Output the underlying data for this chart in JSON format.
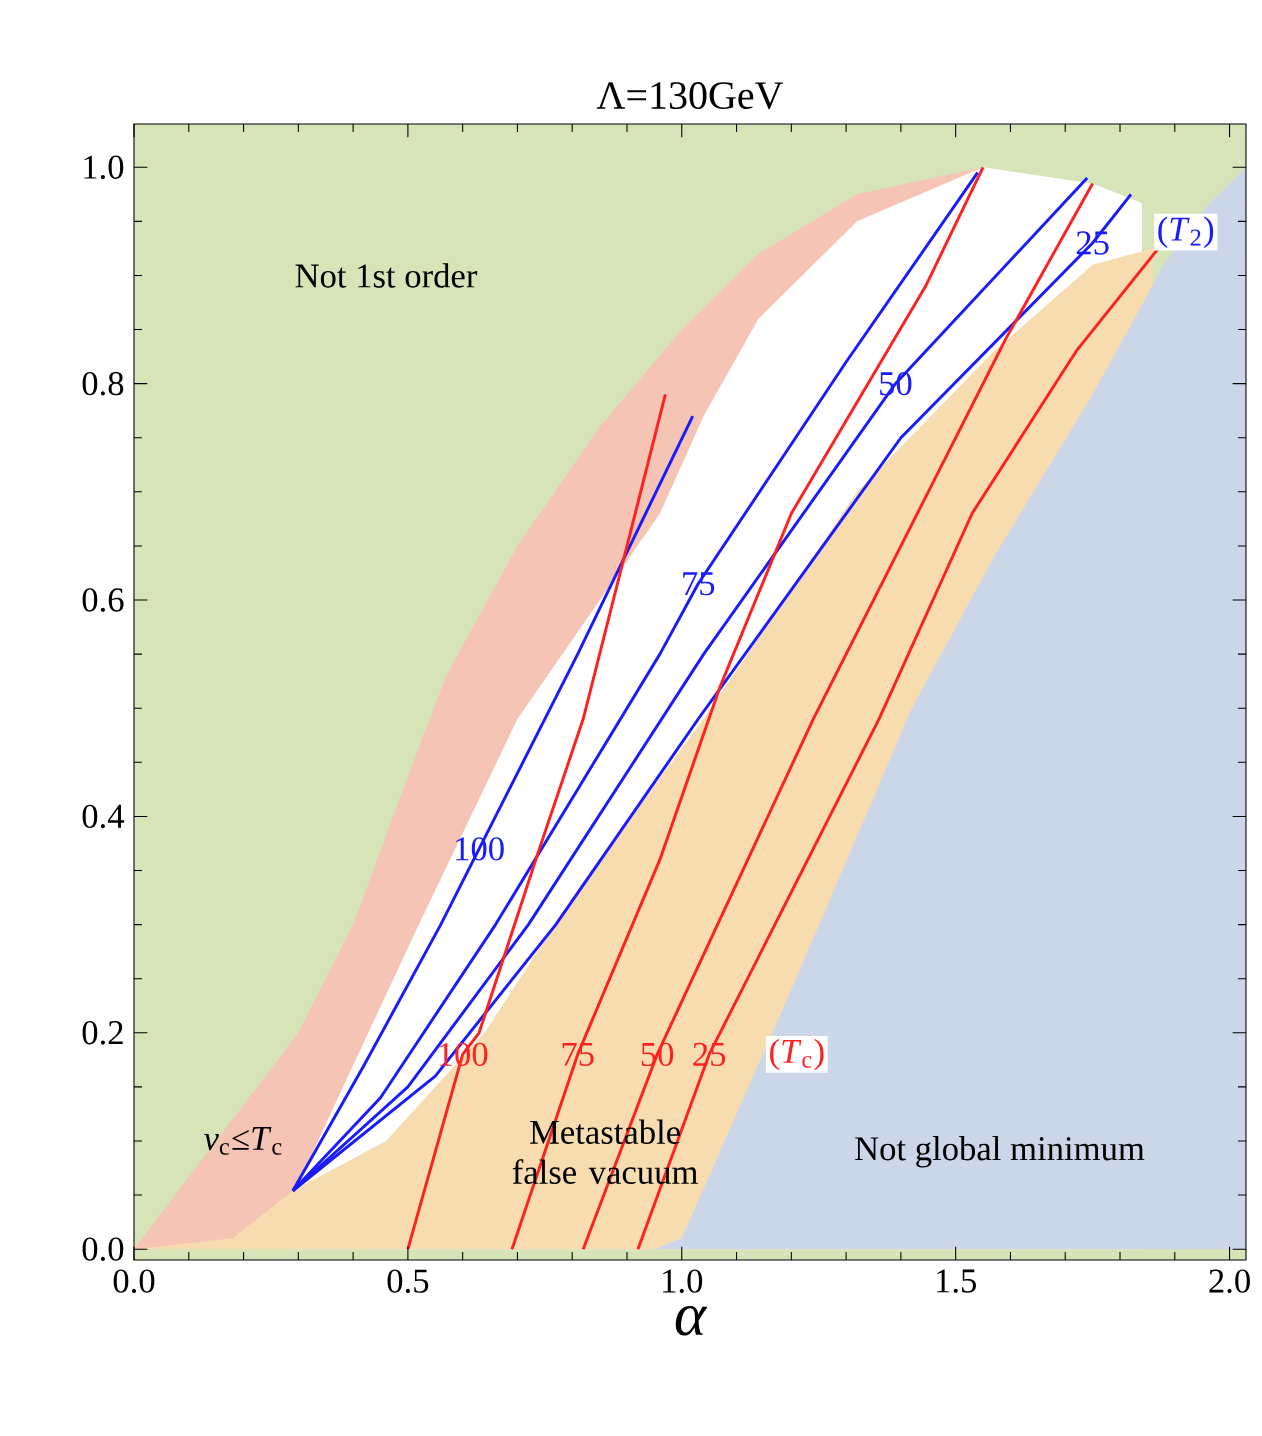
{
  "chart_data": {
    "type": "line",
    "title": "Λ=130GeV",
    "xlabel": "α",
    "xlim": [
      0,
      2.03
    ],
    "ylim": [
      -0.01,
      1.04
    ],
    "xticks": [
      {
        "value": 0,
        "label": "0.0"
      },
      {
        "value": 0.5,
        "label": "0.5"
      },
      {
        "value": 1,
        "label": "1.0"
      },
      {
        "value": 1.5,
        "label": "1.5"
      },
      {
        "value": 2,
        "label": "2.0"
      }
    ],
    "yticks": [
      {
        "value": 0,
        "label": "0.0"
      },
      {
        "value": 0.2,
        "label": "0.2"
      },
      {
        "value": 0.4,
        "label": "0.4"
      },
      {
        "value": 0.6,
        "label": "0.6"
      },
      {
        "value": 0.8,
        "label": "0.8"
      },
      {
        "value": 1,
        "label": "1.0"
      }
    ],
    "bands": [
      {
        "axis": "y",
        "from": -0.01,
        "to": 1.04,
        "color": "#d6e4b8"
      }
    ],
    "series": [
      {
        "type": "area",
        "color": "#f6c4b4",
        "x": [
          0,
          0.18,
          0.3,
          0.4,
          0.51,
          0.57,
          0.7,
          0.85,
          1.0,
          1.14,
          1.32,
          1.55
        ],
        "values": [
          0,
          0.12,
          0.2,
          0.3,
          0.45,
          0.53,
          0.65,
          0.76,
          0.85,
          0.92,
          0.975,
          1.0
        ]
      },
      {
        "type": "area",
        "color": "#ffffff",
        "x": [
          0.29,
          0.4,
          0.52,
          0.7,
          0.96,
          1.04,
          1.14,
          1.32,
          1.55,
          1.75,
          1.84
        ],
        "values": [
          0.05,
          0.17,
          0.3,
          0.49,
          0.68,
          0.77,
          0.86,
          0.95,
          1.0,
          0.985,
          0.967
        ]
      },
      {
        "type": "area",
        "color": "#f7dcb0",
        "x": [
          0,
          0.18,
          0.29,
          0.46,
          0.64,
          0.82,
          1.04,
          1.32,
          1.57,
          1.75,
          1.86
        ],
        "values": [
          0,
          0.01,
          0.054,
          0.1,
          0.2,
          0.34,
          0.49,
          0.7,
          0.83,
          0.91,
          0.925
        ]
      },
      {
        "type": "area",
        "color": "#cbd7e8",
        "x": [
          0.95,
          1.0,
          1.2,
          1.42,
          1.57,
          1.75,
          1.88,
          1.96,
          2.03
        ],
        "values": [
          0,
          0.01,
          0.24,
          0.5,
          0.64,
          0.79,
          0.91,
          0.965,
          1.0
        ]
      },
      {
        "name": "100",
        "color": "#1a1aff",
        "x": [
          0.29,
          0.42,
          0.56,
          0.63,
          0.81,
          1.02
        ],
        "values": [
          0.054,
          0.17,
          0.3,
          0.37,
          0.55,
          0.77
        ]
      },
      {
        "name": "75",
        "color": "#1a1aff",
        "x": [
          0.29,
          0.45,
          0.66,
          0.96,
          1.03,
          1.3,
          1.54
        ],
        "values": [
          0.054,
          0.14,
          0.3,
          0.55,
          0.615,
          0.82,
          0.995
        ]
      },
      {
        "name": "50",
        "color": "#1a1aff",
        "x": [
          0.29,
          0.5,
          0.72,
          1.04,
          1.39,
          1.74
        ],
        "values": [
          0.054,
          0.15,
          0.3,
          0.55,
          0.8,
          0.99
        ]
      },
      {
        "name": "25",
        "color": "#1a1aff",
        "x": [
          0.29,
          0.55,
          0.77,
          1.03,
          1.4,
          1.75,
          1.82
        ],
        "values": [
          0.054,
          0.16,
          0.3,
          0.49,
          0.75,
          0.93,
          0.975
        ]
      },
      {
        "name": "100",
        "color": "#ff2020",
        "x": [
          0.5,
          0.6,
          0.63,
          0.74,
          0.82,
          0.97
        ],
        "values": [
          0,
          0.18,
          0.2,
          0.37,
          0.49,
          0.79
        ]
      },
      {
        "name": "75",
        "color": "#ff2020",
        "x": [
          0.69,
          0.81,
          0.96,
          1.07,
          1.2,
          1.445,
          1.55
        ],
        "values": [
          0,
          0.18,
          0.36,
          0.52,
          0.68,
          0.89,
          1.0
        ]
      },
      {
        "name": "50",
        "color": "#ff2020",
        "x": [
          0.82,
          0.955,
          1.24,
          1.45,
          1.59,
          1.75
        ],
        "values": [
          0,
          0.18,
          0.49,
          0.7,
          0.84,
          0.985
        ]
      },
      {
        "name": "25",
        "color": "#ff2020",
        "x": [
          0.92,
          1.05,
          1.36,
          1.53,
          1.72,
          1.87
        ],
        "values": [
          0,
          0.18,
          0.49,
          0.68,
          0.83,
          0.925
        ]
      }
    ],
    "annotations": [
      "Not 1st order",
      "*v*$_{c}$≤*T*$_{c}$",
      "Metastable false vacuum",
      "Not global minimum",
      "(*T*$_{2}$)",
      "(*T*$_{c}$)"
    ]
  }
}
